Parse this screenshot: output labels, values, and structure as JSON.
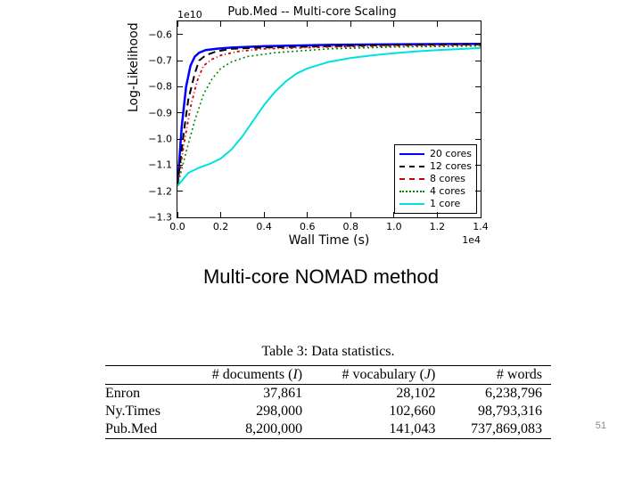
{
  "chart": {
    "type": "line",
    "title": "Pub.Med -- Multi-core Scaling",
    "xlabel": "Wall Time (s)",
    "ylabel": "Log-Likelihood",
    "y_exponent": "1e10",
    "x_exponent": "1e4",
    "xlim": [
      0.0,
      1.4
    ],
    "ylim": [
      -1.3,
      -0.55
    ],
    "xticks": [
      0.0,
      0.2,
      0.4,
      0.6,
      0.8,
      1.0,
      1.2,
      1.4
    ],
    "yticks": [
      -0.6,
      -0.7,
      -0.8,
      -0.9,
      -1.0,
      -1.1,
      -1.2,
      -1.3
    ],
    "background_color": "#ffffff",
    "border_color": "#000000",
    "series": [
      {
        "label": "20 cores",
        "color": "#0000ff",
        "dash": "solid",
        "width": 2.5,
        "points": [
          [
            0.0,
            -1.18
          ],
          [
            0.02,
            -0.95
          ],
          [
            0.04,
            -0.8
          ],
          [
            0.06,
            -0.72
          ],
          [
            0.08,
            -0.685
          ],
          [
            0.1,
            -0.67
          ],
          [
            0.13,
            -0.66
          ],
          [
            0.18,
            -0.655
          ],
          [
            0.25,
            -0.65
          ],
          [
            0.4,
            -0.645
          ],
          [
            0.7,
            -0.64
          ],
          [
            1.0,
            -0.638
          ],
          [
            1.4,
            -0.636
          ]
        ]
      },
      {
        "label": "12 cores",
        "color": "#000000",
        "dash": "8,5",
        "width": 2,
        "points": [
          [
            0.0,
            -1.18
          ],
          [
            0.03,
            -0.97
          ],
          [
            0.05,
            -0.85
          ],
          [
            0.08,
            -0.75
          ],
          [
            0.1,
            -0.7
          ],
          [
            0.13,
            -0.68
          ],
          [
            0.18,
            -0.665
          ],
          [
            0.25,
            -0.655
          ],
          [
            0.4,
            -0.65
          ],
          [
            0.7,
            -0.645
          ],
          [
            1.0,
            -0.64
          ],
          [
            1.4,
            -0.638
          ]
        ]
      },
      {
        "label": "8 cores",
        "color": "#cc0000",
        "dash": "3,3,1,3",
        "width": 1.8,
        "points": [
          [
            0.0,
            -1.18
          ],
          [
            0.03,
            -1.02
          ],
          [
            0.06,
            -0.88
          ],
          [
            0.09,
            -0.78
          ],
          [
            0.12,
            -0.72
          ],
          [
            0.16,
            -0.695
          ],
          [
            0.2,
            -0.68
          ],
          [
            0.28,
            -0.665
          ],
          [
            0.4,
            -0.655
          ],
          [
            0.7,
            -0.648
          ],
          [
            1.0,
            -0.644
          ],
          [
            1.4,
            -0.64
          ]
        ]
      },
      {
        "label": "4 cores",
        "color": "#008800",
        "dash": "2,3",
        "width": 1.6,
        "points": [
          [
            0.0,
            -1.18
          ],
          [
            0.04,
            -1.05
          ],
          [
            0.08,
            -0.93
          ],
          [
            0.12,
            -0.83
          ],
          [
            0.16,
            -0.77
          ],
          [
            0.2,
            -0.73
          ],
          [
            0.25,
            -0.705
          ],
          [
            0.32,
            -0.685
          ],
          [
            0.45,
            -0.67
          ],
          [
            0.7,
            -0.655
          ],
          [
            1.0,
            -0.648
          ],
          [
            1.4,
            -0.644
          ]
        ]
      },
      {
        "label": "1 core",
        "color": "#00e0e0",
        "dash": "solid",
        "width": 2,
        "points": [
          [
            0.0,
            -1.18
          ],
          [
            0.05,
            -1.13
          ],
          [
            0.1,
            -1.11
          ],
          [
            0.15,
            -1.095
          ],
          [
            0.2,
            -1.075
          ],
          [
            0.25,
            -1.04
          ],
          [
            0.3,
            -0.99
          ],
          [
            0.35,
            -0.93
          ],
          [
            0.4,
            -0.87
          ],
          [
            0.45,
            -0.82
          ],
          [
            0.5,
            -0.78
          ],
          [
            0.55,
            -0.75
          ],
          [
            0.6,
            -0.73
          ],
          [
            0.7,
            -0.705
          ],
          [
            0.8,
            -0.69
          ],
          [
            0.9,
            -0.68
          ],
          [
            1.0,
            -0.672
          ],
          [
            1.1,
            -0.665
          ],
          [
            1.2,
            -0.66
          ],
          [
            1.3,
            -0.656
          ],
          [
            1.4,
            -0.652
          ]
        ]
      }
    ]
  },
  "subtitle": "Multi-core NOMAD method",
  "table": {
    "caption": "Table 3: Data statistics.",
    "columns": [
      "",
      "# documents (I)",
      "# vocabulary (J)",
      "# words"
    ],
    "rows": [
      [
        "Enron",
        "37,861",
        "28,102",
        "6,238,796"
      ],
      [
        "Ny.Times",
        "298,000",
        "102,660",
        "98,793,316"
      ],
      [
        "Pub.Med",
        "8,200,000",
        "141,043",
        "737,869,083"
      ]
    ],
    "font_family": "serif",
    "font_size_pt": 12
  },
  "page_number": "51"
}
